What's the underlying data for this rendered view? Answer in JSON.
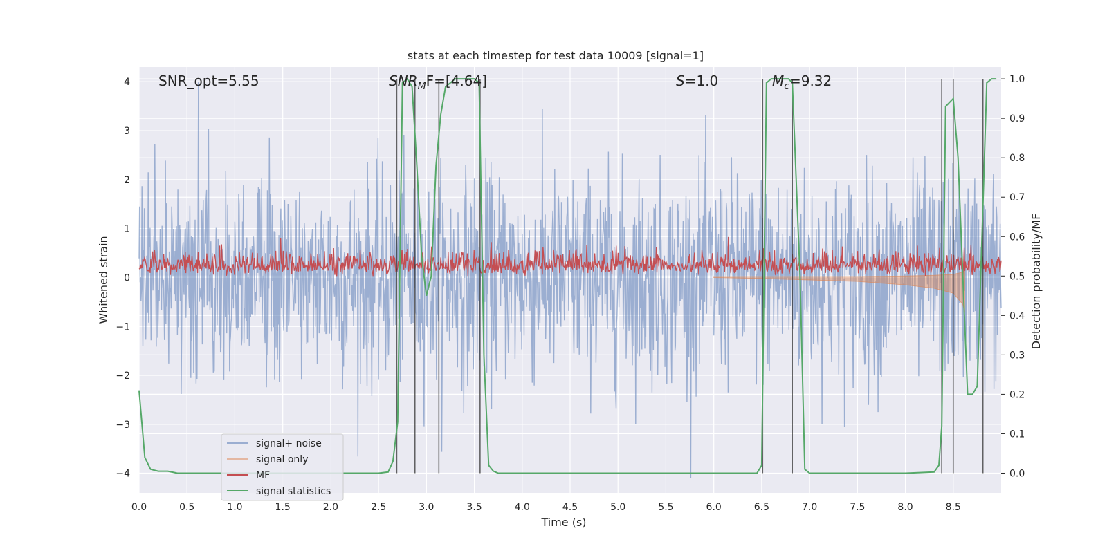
{
  "chart_data": {
    "type": "line",
    "title": "stats at each timestep for test data 10009 [signal=1]",
    "xlabel": "Time (s)",
    "ylabel": "Whitened strain",
    "y2label": "Detection probability/MF",
    "xlim": [
      0.0,
      9.0
    ],
    "ylim": [
      -4.4,
      4.3
    ],
    "y2lim": [
      -0.05,
      1.03
    ],
    "xticks": [
      0.0,
      0.5,
      1.0,
      1.5,
      2.0,
      2.5,
      3.0,
      3.5,
      4.0,
      4.5,
      5.0,
      5.5,
      6.0,
      6.5,
      7.0,
      7.5,
      8.0,
      8.5
    ],
    "xtick_labels": [
      "0.0",
      "0.5",
      "1.0",
      "1.5",
      "2.0",
      "2.5",
      "3.0",
      "3.5",
      "4.0",
      "4.5",
      "5.0",
      "5.5",
      "6.0",
      "6.5",
      "7.0",
      "7.5",
      "8.0",
      "8.5"
    ],
    "yticks": [
      -4,
      -3,
      -2,
      -1,
      0,
      1,
      2,
      3,
      4
    ],
    "ytick_labels": [
      "−4",
      "−3",
      "−2",
      "−1",
      "0",
      "1",
      "2",
      "3",
      "4"
    ],
    "y2ticks": [
      0.0,
      0.1,
      0.2,
      0.3,
      0.4,
      0.5,
      0.6,
      0.7,
      0.8,
      0.9,
      1.0
    ],
    "y2tick_labels": [
      "0.0",
      "0.1",
      "0.2",
      "0.3",
      "0.4",
      "0.5",
      "0.6",
      "0.7",
      "0.8",
      "0.9",
      "1.0"
    ],
    "annotations": {
      "snr_opt": "SNR_opt=5.55",
      "snr_mf_main": "SNR",
      "snr_mf_sub": "M",
      "snr_mf_rest": "F=[4.64]",
      "s_main": "S",
      "s_rest": "=1.0",
      "mc_main": "M",
      "mc_sub": "c",
      "mc_rest": "=9.32"
    },
    "vlines": [
      2.69,
      2.88,
      3.13,
      3.56,
      6.51,
      6.82,
      8.38,
      8.5,
      8.81
    ],
    "signal_statistics": {
      "x": [
        0.0,
        0.06,
        0.12,
        0.2,
        0.3,
        0.4,
        0.8,
        1.5,
        2.0,
        2.5,
        2.6,
        2.65,
        2.7,
        2.75,
        2.8,
        2.85,
        2.9,
        2.95,
        3.0,
        3.05,
        3.1,
        3.15,
        3.2,
        3.3,
        3.4,
        3.5,
        3.55,
        3.6,
        3.65,
        3.7,
        3.75,
        4.0,
        5.0,
        6.0,
        6.45,
        6.5,
        6.55,
        6.6,
        6.7,
        6.78,
        6.82,
        6.9,
        6.95,
        7.0,
        7.5,
        8.0,
        8.3,
        8.35,
        8.38,
        8.42,
        8.5,
        8.55,
        8.6,
        8.65,
        8.7,
        8.75,
        8.8,
        8.85,
        8.9,
        8.95
      ],
      "y": [
        0.21,
        0.04,
        0.01,
        0.005,
        0.005,
        0.0,
        0.0,
        0.0,
        0.0,
        0.0,
        0.003,
        0.03,
        0.13,
        0.99,
        1.0,
        0.98,
        0.78,
        0.55,
        0.45,
        0.5,
        0.78,
        0.91,
        0.98,
        1.0,
        1.0,
        1.0,
        0.99,
        0.3,
        0.02,
        0.005,
        0.0,
        0.0,
        0.0,
        0.0,
        0.0,
        0.02,
        0.99,
        1.0,
        1.0,
        1.0,
        0.99,
        0.5,
        0.01,
        0.0,
        0.0,
        0.0,
        0.003,
        0.02,
        0.12,
        0.93,
        0.95,
        0.8,
        0.5,
        0.2,
        0.2,
        0.22,
        0.6,
        0.99,
        1.0,
        1.0
      ]
    },
    "signal_only_envelope": {
      "x": [
        6.0,
        6.5,
        7.0,
        7.5,
        8.0,
        8.3,
        8.5,
        8.6,
        8.62
      ],
      "y": [
        0.0,
        -0.02,
        -0.05,
        -0.08,
        -0.15,
        -0.22,
        -0.32,
        -0.55,
        -0.72
      ]
    },
    "series": [
      {
        "name": "signal+ noise",
        "color": "#4c72b0"
      },
      {
        "name": "signal only",
        "color": "#dd8452"
      },
      {
        "name": "MF",
        "color": "#c44e52"
      },
      {
        "name": "signal statistics",
        "color": "#55a868"
      }
    ],
    "legend_position": "lower-left"
  }
}
